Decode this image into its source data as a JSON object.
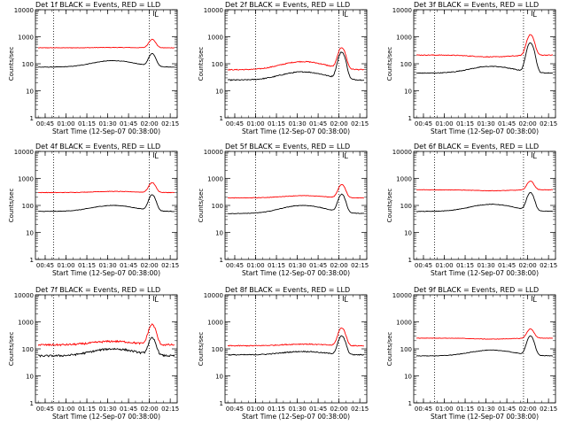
{
  "chart_data": {
    "type": "line",
    "yscale": "log",
    "ylim": [
      1,
      10000
    ],
    "xlim": [
      "00:38",
      "02:20"
    ],
    "x_ticks": [
      "00:45",
      "01:00",
      "01:15",
      "01:30",
      "01:45",
      "02:00",
      "02:15"
    ],
    "y_ticks": [
      "1",
      "10",
      "100",
      "1000",
      "10000"
    ],
    "xlabel": "Start Time (12-Sep-07 00:38:00)",
    "ylabel": "Counts/sec",
    "series_colors": {
      "events": "#000000",
      "lld": "#ff0000"
    },
    "marker_label": "L",
    "panels": [
      {
        "title": "Det 1f BLACK = Events, RED = LLD",
        "dotted_lines": [
          "00:51",
          "02:00"
        ],
        "marker_time": "02:03",
        "noise": 0.02,
        "events": {
          "base": 75,
          "bump": 130,
          "flare": 240
        },
        "lld": {
          "base": 390,
          "bump": 400,
          "flare": 800
        }
      },
      {
        "title": "Det 2f BLACK = Events, RED = LLD",
        "dotted_lines": [
          "01:00",
          "02:00"
        ],
        "marker_time": "02:03",
        "noise": 0.04,
        "events": {
          "base": 25,
          "bump": 50,
          "flare": 270
        },
        "lld": {
          "base": 60,
          "bump": 120,
          "flare": 400
        }
      },
      {
        "title": "Det 3f BLACK = Events, RED = LLD",
        "dotted_lines": [
          "00:53",
          "01:57"
        ],
        "marker_time": "02:03",
        "noise": 0.03,
        "events": {
          "base": 45,
          "bump": 80,
          "flare": 600
        },
        "lld": {
          "base": 210,
          "bump": 180,
          "flare": 1200
        }
      },
      {
        "title": "Det 4f BLACK = Events, RED = LLD",
        "dotted_lines": [
          "00:51",
          "02:00"
        ],
        "marker_time": "02:03",
        "noise": 0.02,
        "events": {
          "base": 60,
          "bump": 100,
          "flare": 250
        },
        "lld": {
          "base": 300,
          "bump": 330,
          "flare": 700
        }
      },
      {
        "title": "Det 5f BLACK = Events, RED = LLD",
        "dotted_lines": [
          "01:00",
          "02:00"
        ],
        "marker_time": "02:03",
        "noise": 0.02,
        "events": {
          "base": 50,
          "bump": 100,
          "flare": 260
        },
        "lld": {
          "base": 190,
          "bump": 230,
          "flare": 600
        }
      },
      {
        "title": "Det 6f BLACK = Events, RED = LLD",
        "dotted_lines": [
          "00:53",
          "01:57"
        ],
        "marker_time": "02:03",
        "noise": 0.02,
        "events": {
          "base": 60,
          "bump": 110,
          "flare": 300
        },
        "lld": {
          "base": 380,
          "bump": 350,
          "flare": 800
        }
      },
      {
        "title": "Det 7f BLACK = Events, RED = LLD",
        "dotted_lines": [
          "00:51",
          "02:00"
        ],
        "marker_time": "02:03",
        "noise": 0.08,
        "events": {
          "base": 55,
          "bump": 100,
          "flare": 250
        },
        "lld": {
          "base": 140,
          "bump": 190,
          "flare": 800
        }
      },
      {
        "title": "Det 8f BLACK = Events, RED = LLD",
        "dotted_lines": [
          "01:00",
          "02:00"
        ],
        "marker_time": "02:03",
        "noise": 0.04,
        "events": {
          "base": 60,
          "bump": 80,
          "flare": 300
        },
        "lld": {
          "base": 130,
          "bump": 150,
          "flare": 600
        }
      },
      {
        "title": "Det 9f BLACK = Events, RED = LLD",
        "dotted_lines": [
          "00:53",
          "01:57"
        ],
        "marker_time": "02:03",
        "noise": 0.02,
        "events": {
          "base": 55,
          "bump": 90,
          "flare": 300
        },
        "lld": {
          "base": 250,
          "bump": 230,
          "flare": 550
        }
      }
    ]
  }
}
